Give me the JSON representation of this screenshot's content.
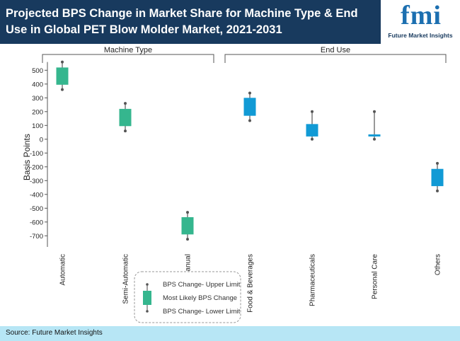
{
  "header": {
    "title": "Projected BPS Change in Market Share for Machine Type & End Use in Global PET Blow Molder Market, 2021-2031",
    "logo_letters": "fmi",
    "logo_name": "Future Market Insights"
  },
  "colors": {
    "header_bg": "#183a5e",
    "machine_type": "#35b68e",
    "end_use": "#119ad5",
    "footer_bg": "#b7e6f5"
  },
  "chart_data": {
    "type": "box",
    "ylabel": "Basis Points",
    "ylim": [
      -750,
      560
    ],
    "yticks": [
      500,
      400,
      300,
      200,
      100,
      0,
      -100,
      -200,
      -300,
      -400,
      -500,
      -600,
      -700
    ],
    "groups": [
      {
        "label": "Machine Type",
        "categories": [
          "Automatic",
          "Semi-Automatic",
          "Manual"
        ]
      },
      {
        "label": "End Use",
        "categories": [
          "Food & Beverages",
          "Pharmaceuticals",
          "Personal Care",
          "Others"
        ]
      }
    ],
    "series": [
      {
        "category": "Automatic",
        "group": "Machine Type",
        "upper": 560,
        "box_high": 520,
        "box_low": 395,
        "lower": 360
      },
      {
        "category": "Semi-Automatic",
        "group": "Machine Type",
        "upper": 260,
        "box_high": 220,
        "box_low": 95,
        "lower": 60
      },
      {
        "category": "Manual",
        "group": "Machine Type",
        "upper": -530,
        "box_high": -565,
        "box_low": -690,
        "lower": -725
      },
      {
        "category": "Food & Beverages",
        "group": "End Use",
        "upper": 335,
        "box_high": 300,
        "box_low": 170,
        "lower": 135
      },
      {
        "category": "Pharmaceuticals",
        "group": "End Use",
        "upper": 200,
        "box_high": 110,
        "box_low": 20,
        "lower": 0
      },
      {
        "category": "Personal Care",
        "group": "End Use",
        "upper": 200,
        "box_high": 35,
        "box_low": 20,
        "lower": 0
      },
      {
        "category": "Others",
        "group": "End Use",
        "upper": -175,
        "box_high": -215,
        "box_low": -340,
        "lower": -375
      }
    ],
    "legend": {
      "upper_label": "BPS Change- Upper Limit",
      "mid_label": "Most Likely BPS Change",
      "lower_label": "BPS Change- Lower Limit"
    }
  },
  "footer": {
    "source": "Source: Future Market Insights"
  }
}
